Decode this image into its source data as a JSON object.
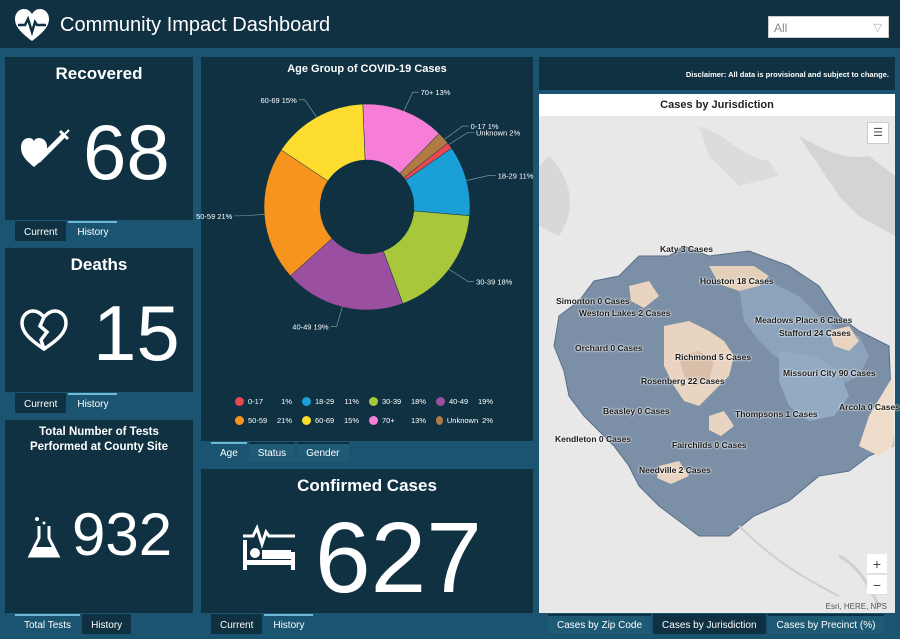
{
  "header": {
    "title": "Community Impact Dashboard",
    "filter_value": "All"
  },
  "recovered": {
    "title": "Recovered",
    "value": "68",
    "tabs": [
      "Current",
      "History"
    ]
  },
  "deaths": {
    "title": "Deaths",
    "value": "15",
    "tabs": [
      "Current",
      "History"
    ]
  },
  "tests": {
    "title": "Total Number of Tests Performed at County Site",
    "value": "932",
    "tabs": [
      "Total Tests",
      "History"
    ]
  },
  "confirmed": {
    "title": "Confirmed Cases",
    "value": "627",
    "tabs": [
      "Current",
      "History"
    ]
  },
  "age_chart": {
    "tabs": [
      "Age",
      "Status",
      "Gender"
    ]
  },
  "chart_data": {
    "type": "pie",
    "title": "Age Group of COVID-19 Cases",
    "donut": true,
    "categories": [
      "0-17",
      "18-29",
      "30-39",
      "40-49",
      "50-59",
      "60-69",
      "70+",
      "Unknown"
    ],
    "values": [
      1,
      11,
      18,
      19,
      21,
      15,
      13,
      2
    ],
    "slice_labels": [
      "0-17 1%",
      "18-29 11%",
      "30-39 18%",
      "40-49 19%",
      "50-59 21%",
      "60-69 15%",
      "70+ 13%",
      "Unknown 2%"
    ],
    "legend_values": [
      "1%",
      "11%",
      "18%",
      "19%",
      "21%",
      "15%",
      "13%",
      "2%"
    ],
    "colors": [
      "#e8484f",
      "#1aa0d6",
      "#a8c73a",
      "#9b4fa1",
      "#f7941d",
      "#fcdc2e",
      "#f77ed6",
      "#b07a45"
    ],
    "legend_position": "bottom"
  },
  "disclaimer": "Disclaimer: All data is provisional and subject to change.",
  "map": {
    "title": "Cases by Jurisdiction",
    "attribution": "Esri, HERE, NPS",
    "zoom_in": "+",
    "zoom_out": "−",
    "labels": [
      "Katy 3 Cases",
      "Houston 18 Cases",
      "Simonton 0 Cases",
      "Weston Lakes 2 Cases",
      "Meadows Place 6 Cases",
      "Stafford 24 Cases",
      "Orchard 0 Cases",
      "Richmond 5 Cases",
      "Missouri City 90 Cases",
      "Rosenberg 22 Cases",
      "Arcola 0 Cases",
      "Beasley 0 Cases",
      "Thompsons 1 Cases",
      "Kendleton 0 Cases",
      "Fairchilds 0 Cases",
      "Needville 2 Cases"
    ],
    "tabs": [
      "Cases by Zip Code",
      "Cases by Jurisdiction",
      "Cases by Precinct (%)"
    ]
  },
  "icons": {
    "logo": "heart-pulse-icon",
    "recovered": "heart-syringe-icon",
    "deaths": "broken-heart-icon",
    "tests": "flask-icon",
    "confirmed": "bed-pulse-icon",
    "list": "list-icon"
  }
}
